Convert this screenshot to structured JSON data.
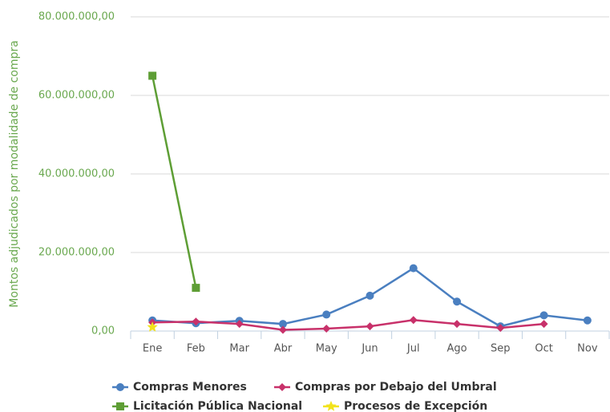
{
  "chart_data": {
    "type": "line",
    "y_label": "Montos adjudicados por modalidade de compra",
    "categories": [
      "Ene",
      "Feb",
      "Mar",
      "Abr",
      "May",
      "Jun",
      "Jul",
      "Ago",
      "Sep",
      "Oct",
      "Nov"
    ],
    "series": [
      {
        "name": "Compras Menores",
        "color": "#4a7fc0",
        "marker": "circle",
        "values": [
          2700000,
          2000000,
          2600000,
          1800000,
          4200000,
          9000000,
          16000000,
          7500000,
          1200000,
          4000000,
          2700000
        ]
      },
      {
        "name": "Compras por Debajo del Umbral",
        "color": "#c8316a",
        "marker": "diamond",
        "values": [
          2200000,
          2400000,
          1800000,
          300000,
          600000,
          1200000,
          2800000,
          1800000,
          800000,
          1800000,
          null
        ]
      },
      {
        "name": "Licitación Pública Nacional",
        "color": "#5e9e35",
        "marker": "square",
        "values": [
          65000000,
          11000000,
          null,
          null,
          null,
          null,
          null,
          null,
          null,
          null,
          null
        ]
      },
      {
        "name": "Procesos de Excepción",
        "color": "#f2e31c",
        "marker": "star",
        "values": [
          1000000,
          null,
          null,
          null,
          null,
          null,
          null,
          null,
          null,
          null,
          null
        ]
      }
    ],
    "ylim": [
      0,
      80000000
    ],
    "yticks": [
      {
        "value": 0,
        "label": "0,00"
      },
      {
        "value": 20000000,
        "label": "20.000.000,00"
      },
      {
        "value": 40000000,
        "label": "40.000.000,00"
      },
      {
        "value": 60000000,
        "label": "60.000.000,00"
      },
      {
        "value": 80000000,
        "label": "80.000.000,00"
      }
    ],
    "grid": true
  }
}
